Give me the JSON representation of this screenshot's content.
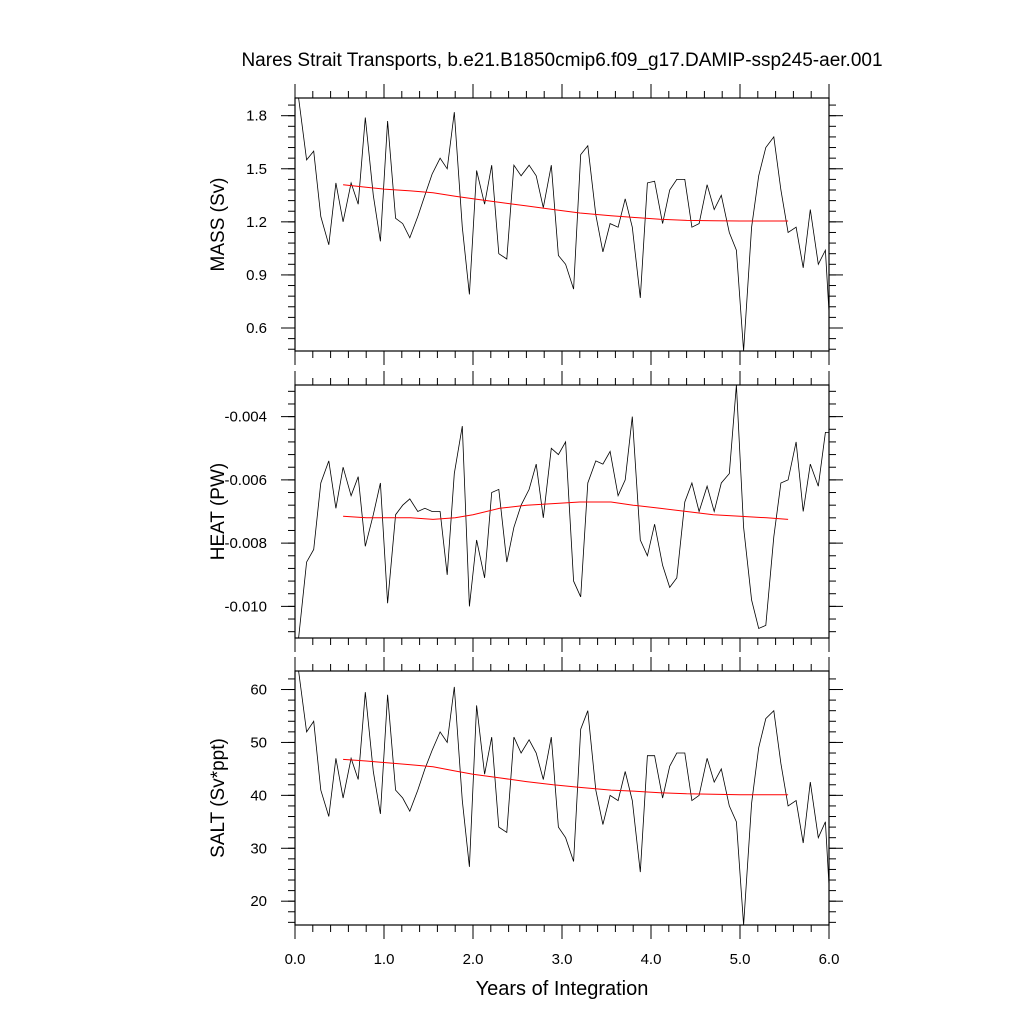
{
  "chart_data": {
    "type": "line",
    "title": "Nares Strait Transports, b.e21.B1850cmip6.f09_g17.DAMIP-ssp245-aer.001",
    "xlabel": "Years of Integration",
    "xlim": [
      0.0,
      6.0
    ],
    "xticks": [
      0.0,
      1.0,
      2.0,
      3.0,
      4.0,
      5.0,
      6.0
    ],
    "xtick_labels": [
      "0.0",
      "1.0",
      "2.0",
      "3.0",
      "4.0",
      "5.0",
      "6.0"
    ],
    "x_minor_step": 0.2,
    "x": [
      0.04,
      0.13,
      0.21,
      0.29,
      0.38,
      0.46,
      0.54,
      0.63,
      0.71,
      0.79,
      0.88,
      0.96,
      1.04,
      1.13,
      1.21,
      1.29,
      1.38,
      1.46,
      1.54,
      1.63,
      1.71,
      1.79,
      1.88,
      1.96,
      2.04,
      2.13,
      2.21,
      2.29,
      2.38,
      2.46,
      2.54,
      2.63,
      2.71,
      2.79,
      2.88,
      2.96,
      3.04,
      3.13,
      3.21,
      3.29,
      3.38,
      3.46,
      3.54,
      3.63,
      3.71,
      3.79,
      3.88,
      3.96,
      4.04,
      4.13,
      4.21,
      4.29,
      4.38,
      4.46,
      4.54,
      4.63,
      4.71,
      4.79,
      4.88,
      4.96,
      5.04,
      5.13,
      5.21,
      5.29,
      5.38,
      5.46,
      5.54,
      5.63,
      5.71,
      5.79,
      5.88,
      5.96,
      6.0
    ],
    "trend_x": [
      0.54,
      0.8,
      1.0,
      1.3,
      1.55,
      1.8,
      2.0,
      2.3,
      2.6,
      2.9,
      3.2,
      3.55,
      3.8,
      4.1,
      4.4,
      4.7,
      5.0,
      5.3,
      5.54
    ],
    "trend_color": "#ff0000",
    "line_color": "#000000",
    "panels": [
      {
        "ylabel": "MASS (Sv)",
        "ylim": [
          0.47,
          1.9
        ],
        "yticks": [
          0.6,
          0.9,
          1.2,
          1.5,
          1.8
        ],
        "ytick_labels": [
          "0.6",
          "0.9",
          "1.2",
          "1.5",
          "1.8"
        ],
        "y_minor_step": 0.06,
        "values": [
          1.9,
          1.55,
          1.6,
          1.23,
          1.07,
          1.42,
          1.2,
          1.42,
          1.3,
          1.79,
          1.35,
          1.09,
          1.77,
          1.22,
          1.19,
          1.11,
          1.23,
          1.35,
          1.47,
          1.56,
          1.5,
          1.82,
          1.17,
          0.79,
          1.49,
          1.3,
          1.52,
          1.02,
          0.99,
          1.52,
          1.46,
          1.52,
          1.46,
          1.28,
          1.52,
          1.01,
          0.96,
          0.82,
          1.58,
          1.63,
          1.24,
          1.03,
          1.19,
          1.17,
          1.33,
          1.17,
          0.77,
          1.42,
          1.43,
          1.19,
          1.38,
          1.44,
          1.44,
          1.17,
          1.19,
          1.41,
          1.27,
          1.35,
          1.14,
          1.04,
          0.47,
          1.17,
          1.46,
          1.62,
          1.68,
          1.38,
          1.14,
          1.17,
          0.94,
          1.27,
          0.96,
          1.04,
          0.69
        ],
        "trend": [
          1.41,
          1.395,
          1.385,
          1.375,
          1.365,
          1.345,
          1.33,
          1.31,
          1.29,
          1.27,
          1.25,
          1.235,
          1.225,
          1.215,
          1.208,
          1.206,
          1.205,
          1.205,
          1.205
        ]
      },
      {
        "ylabel": "HEAT (PW)",
        "ylim": [
          -0.011,
          -0.003
        ],
        "yticks": [
          -0.01,
          -0.008,
          -0.006,
          -0.004
        ],
        "ytick_labels": [
          "-0.010",
          "-0.008",
          "-0.006",
          "-0.004"
        ],
        "y_minor_step": 0.0004,
        "values": [
          -0.011,
          -0.0086,
          -0.0082,
          -0.0061,
          -0.0054,
          -0.0069,
          -0.0056,
          -0.0065,
          -0.0059,
          -0.0081,
          -0.0071,
          -0.0061,
          -0.0099,
          -0.0071,
          -0.0068,
          -0.0066,
          -0.007,
          -0.0069,
          -0.007,
          -0.007,
          -0.009,
          -0.0058,
          -0.0043,
          -0.01,
          -0.0079,
          -0.0091,
          -0.0064,
          -0.0063,
          -0.0086,
          -0.0075,
          -0.0068,
          -0.0063,
          -0.0055,
          -0.0072,
          -0.005,
          -0.0052,
          -0.0048,
          -0.0092,
          -0.0097,
          -0.0061,
          -0.0054,
          -0.0055,
          -0.0051,
          -0.0065,
          -0.006,
          -0.004,
          -0.0079,
          -0.0084,
          -0.0074,
          -0.0087,
          -0.0094,
          -0.0091,
          -0.0067,
          -0.0061,
          -0.007,
          -0.0062,
          -0.007,
          -0.0061,
          -0.0058,
          -0.003,
          -0.0075,
          -0.0098,
          -0.0107,
          -0.0106,
          -0.0078,
          -0.0061,
          -0.006,
          -0.0048,
          -0.007,
          -0.0055,
          -0.0062,
          -0.0045,
          -0.0045
        ],
        "trend": [
          -0.00715,
          -0.0072,
          -0.0072,
          -0.0072,
          -0.00725,
          -0.0072,
          -0.0071,
          -0.0069,
          -0.0068,
          -0.00675,
          -0.0067,
          -0.0067,
          -0.0068,
          -0.0069,
          -0.007,
          -0.0071,
          -0.00715,
          -0.0072,
          -0.00725
        ]
      },
      {
        "ylabel": "SALT (Sv*ppt)",
        "ylim": [
          15.5,
          63.5
        ],
        "yticks": [
          20,
          30,
          40,
          50,
          60
        ],
        "ytick_labels": [
          "20",
          "30",
          "40",
          "50",
          "60"
        ],
        "y_minor_step": 2,
        "values": [
          63.5,
          52,
          54,
          41,
          36,
          47,
          39.5,
          47,
          43,
          59.5,
          44.5,
          36.5,
          59,
          41,
          39.5,
          37,
          41,
          45,
          48.5,
          52,
          50,
          60.5,
          39,
          26.5,
          57,
          44,
          51,
          34,
          33,
          51,
          48,
          50.5,
          48,
          43,
          51,
          34,
          32,
          27.5,
          52.5,
          56,
          41,
          34.5,
          40,
          39,
          44.5,
          39,
          25.5,
          47.5,
          47.5,
          39.5,
          45.5,
          48,
          48,
          39,
          40,
          47,
          42.5,
          45,
          38,
          35,
          15.5,
          38.5,
          49,
          54.5,
          56,
          46,
          38,
          39,
          31,
          42.5,
          32,
          35,
          23
        ],
        "trend": [
          46.8,
          46.5,
          46.2,
          45.8,
          45.4,
          44.6,
          44.0,
          43.3,
          42.6,
          42.0,
          41.5,
          41.0,
          40.8,
          40.5,
          40.3,
          40.2,
          40.1,
          40.1,
          40.1
        ]
      }
    ]
  }
}
